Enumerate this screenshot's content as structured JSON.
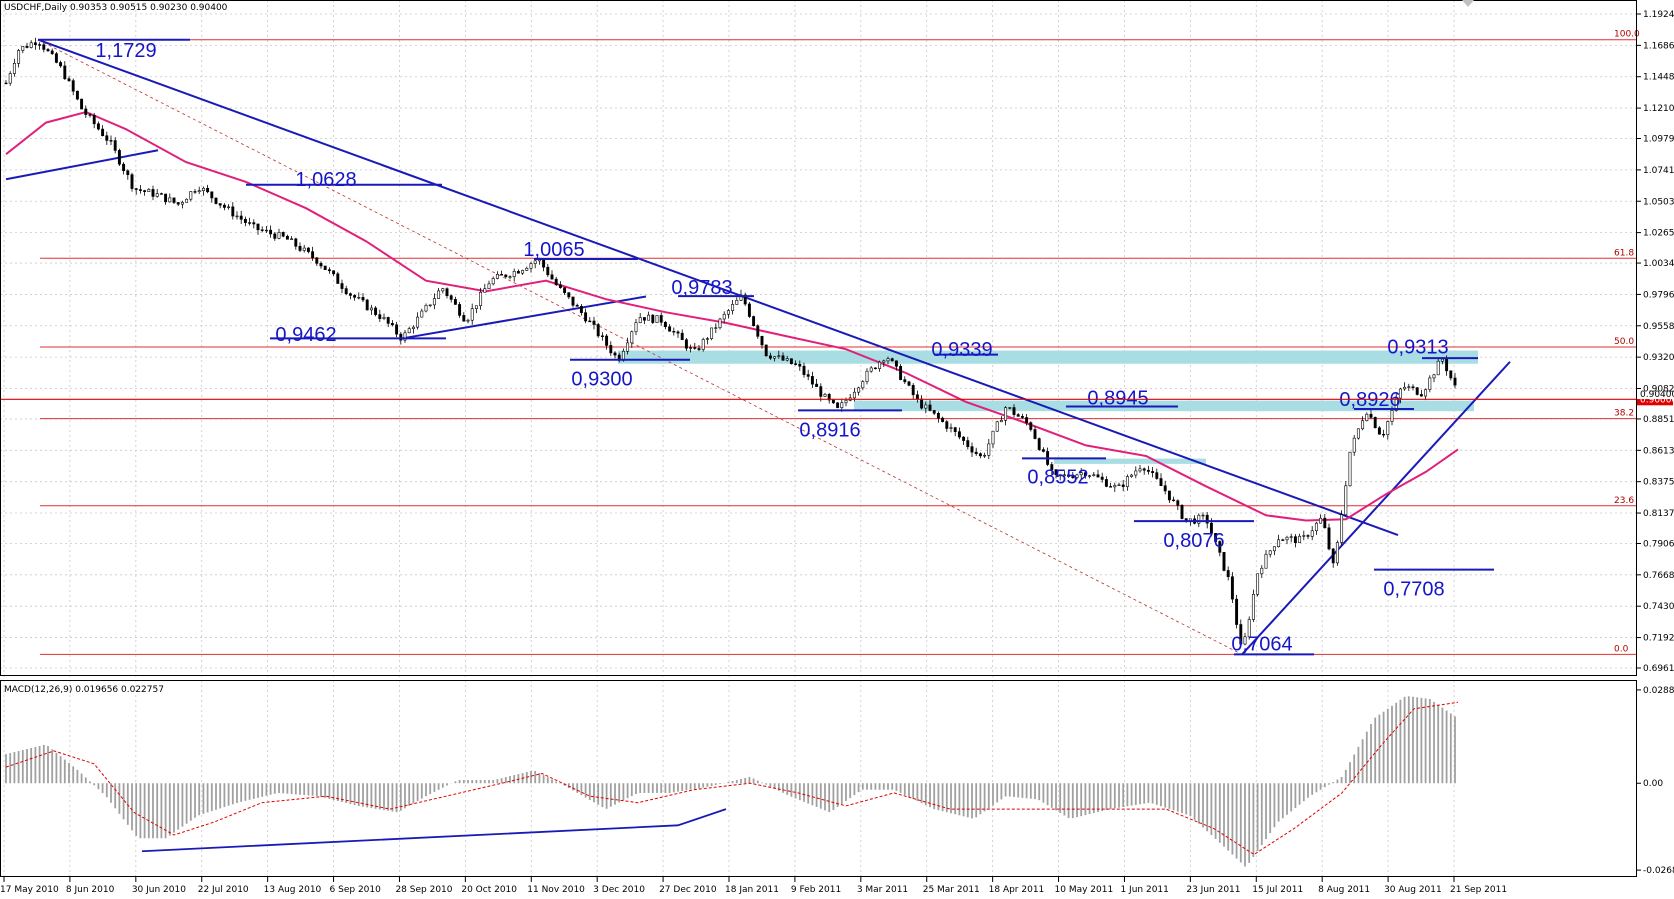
{
  "header": {
    "main_title": "USDCHF,Daily  0.90353 0.90515 0.90230 0.90400",
    "macd_title": "MACD(12,26,9) 0.019656 0.022757"
  },
  "colors": {
    "grid": "#c8c8c8",
    "bull_candle": "#ffffff",
    "bear_candle": "#000000",
    "ma": "#e0207a",
    "trendline": "#1a1ab8",
    "fib": "#e03030",
    "zone": "#a8dde4",
    "current_price": "#e00000",
    "macd_hist": "#a0a0a0",
    "macd_signal": "#e00000"
  },
  "chart_data": {
    "type": "candlestick",
    "symbol": "USDCHF",
    "timeframe": "Daily",
    "ohlc_current": {
      "open": 0.90353,
      "high": 0.90515,
      "low": 0.9023,
      "close": 0.904
    },
    "y_ticks": [
      "1.19240",
      "1.16860",
      "1.14480",
      "1.12100",
      "1.09790",
      "1.07410",
      "1.05030",
      "1.02650",
      "1.00340",
      "0.97960",
      "0.95580",
      "0.93200",
      "0.90820",
      "0.88510",
      "0.86130",
      "0.83750",
      "0.81370",
      "0.79060",
      "0.76680",
      "0.74300",
      "0.71920",
      "0.69610"
    ],
    "x_ticks": [
      "17 May 2010",
      "8 Jun 2010",
      "30 Jun 2010",
      "22 Jul 2010",
      "13 Aug 2010",
      "6 Sep 2010",
      "28 Sep 2010",
      "20 Oct 2010",
      "11 Nov 2010",
      "3 Dec 2010",
      "27 Dec 2010",
      "18 Jan 2011",
      "9 Feb 2011",
      "3 Mar 2011",
      "25 Mar 2011",
      "18 Apr 2011",
      "10 May 2011",
      "1 Jun 2011",
      "23 Jun 2011",
      "15 Jul 2011",
      "8 Aug 2011",
      "30 Aug 2011",
      "21 Sep 2011"
    ],
    "ylim": [
      0.6961,
      1.1924
    ],
    "current_price_label": "0.90000",
    "bid_label": "0.90400",
    "price_path": [
      {
        "d": 0,
        "p": 1.14
      },
      {
        "d": 3,
        "p": 1.165
      },
      {
        "d": 8,
        "p": 1.1729
      },
      {
        "d": 14,
        "p": 1.15
      },
      {
        "d": 19,
        "p": 1.12
      },
      {
        "d": 26,
        "p": 1.095
      },
      {
        "d": 32,
        "p": 1.06
      },
      {
        "d": 38,
        "p": 1.055
      },
      {
        "d": 43,
        "p": 1.048
      },
      {
        "d": 48,
        "p": 1.062
      },
      {
        "d": 55,
        "p": 1.045
      },
      {
        "d": 62,
        "p": 1.03
      },
      {
        "d": 70,
        "p": 1.022
      },
      {
        "d": 78,
        "p": 1.005
      },
      {
        "d": 86,
        "p": 0.98
      },
      {
        "d": 94,
        "p": 0.962
      },
      {
        "d": 99,
        "p": 0.9462
      },
      {
        "d": 104,
        "p": 0.965
      },
      {
        "d": 109,
        "p": 0.985
      },
      {
        "d": 115,
        "p": 0.96
      },
      {
        "d": 121,
        "p": 0.99
      },
      {
        "d": 128,
        "p": 0.998
      },
      {
        "d": 133,
        "p": 1.0065
      },
      {
        "d": 138,
        "p": 0.985
      },
      {
        "d": 145,
        "p": 0.962
      },
      {
        "d": 153,
        "p": 0.93
      },
      {
        "d": 158,
        "p": 0.963
      },
      {
        "d": 164,
        "p": 0.96
      },
      {
        "d": 172,
        "p": 0.935
      },
      {
        "d": 180,
        "p": 0.965
      },
      {
        "d": 184,
        "p": 0.9783
      },
      {
        "d": 190,
        "p": 0.935
      },
      {
        "d": 198,
        "p": 0.925
      },
      {
        "d": 205,
        "p": 0.9
      },
      {
        "d": 208,
        "p": 0.8916
      },
      {
        "d": 214,
        "p": 0.915
      },
      {
        "d": 220,
        "p": 0.9339
      },
      {
        "d": 228,
        "p": 0.898
      },
      {
        "d": 236,
        "p": 0.878
      },
      {
        "d": 244,
        "p": 0.8552
      },
      {
        "d": 250,
        "p": 0.8945
      },
      {
        "d": 256,
        "p": 0.88
      },
      {
        "d": 262,
        "p": 0.84
      },
      {
        "d": 270,
        "p": 0.845
      },
      {
        "d": 278,
        "p": 0.832
      },
      {
        "d": 284,
        "p": 0.851
      },
      {
        "d": 290,
        "p": 0.83
      },
      {
        "d": 295,
        "p": 0.8076
      },
      {
        "d": 300,
        "p": 0.81
      },
      {
        "d": 306,
        "p": 0.76
      },
      {
        "d": 309,
        "p": 0.7064
      },
      {
        "d": 313,
        "p": 0.77
      },
      {
        "d": 318,
        "p": 0.795
      },
      {
        "d": 324,
        "p": 0.793
      },
      {
        "d": 329,
        "p": 0.81
      },
      {
        "d": 332,
        "p": 0.7708
      },
      {
        "d": 336,
        "p": 0.86
      },
      {
        "d": 340,
        "p": 0.8926
      },
      {
        "d": 344,
        "p": 0.872
      },
      {
        "d": 349,
        "p": 0.91
      },
      {
        "d": 354,
        "p": 0.905
      },
      {
        "d": 359,
        "p": 0.9313
      },
      {
        "d": 363,
        "p": 0.904
      }
    ],
    "moving_average": [
      {
        "d": 0,
        "p": 1.086
      },
      {
        "d": 10,
        "p": 1.11
      },
      {
        "d": 20,
        "p": 1.118
      },
      {
        "d": 30,
        "p": 1.105
      },
      {
        "d": 45,
        "p": 1.08
      },
      {
        "d": 60,
        "p": 1.065
      },
      {
        "d": 75,
        "p": 1.045
      },
      {
        "d": 90,
        "p": 1.02
      },
      {
        "d": 105,
        "p": 0.99
      },
      {
        "d": 120,
        "p": 0.982
      },
      {
        "d": 135,
        "p": 0.99
      },
      {
        "d": 150,
        "p": 0.976
      },
      {
        "d": 165,
        "p": 0.966
      },
      {
        "d": 180,
        "p": 0.958
      },
      {
        "d": 195,
        "p": 0.948
      },
      {
        "d": 210,
        "p": 0.938
      },
      {
        "d": 225,
        "p": 0.92
      },
      {
        "d": 240,
        "p": 0.898
      },
      {
        "d": 255,
        "p": 0.882
      },
      {
        "d": 270,
        "p": 0.865
      },
      {
        "d": 285,
        "p": 0.857
      },
      {
        "d": 300,
        "p": 0.834
      },
      {
        "d": 315,
        "p": 0.812
      },
      {
        "d": 325,
        "p": 0.808
      },
      {
        "d": 335,
        "p": 0.809
      },
      {
        "d": 345,
        "p": 0.828
      },
      {
        "d": 355,
        "p": 0.845
      },
      {
        "d": 363,
        "p": 0.862
      }
    ],
    "fibonacci": [
      {
        "label": "100.0",
        "price": 1.1729
      },
      {
        "label": "61.8",
        "price": 1.007
      },
      {
        "label": "50.0",
        "price": 0.9397
      },
      {
        "label": "38.2",
        "price": 0.8853
      },
      {
        "label": "23.6",
        "price": 0.8192
      },
      {
        "label": "0.0",
        "price": 0.7064
      }
    ],
    "zones": [
      {
        "d0": 153,
        "d1": 368,
        "p_top": 0.937,
        "p_bot": 0.927
      },
      {
        "d0": 212,
        "d1": 367,
        "p_top": 0.899,
        "p_bot": 0.891
      },
      {
        "d0": 262,
        "d1": 300,
        "p_top": 0.855,
        "p_bot": 0.851
      }
    ],
    "trendlines": [
      {
        "d0": 0,
        "p0": 1.067,
        "d1": 38,
        "p1": 1.089,
        "style": "solid"
      },
      {
        "d0": 8,
        "p0": 1.1729,
        "d1": 348,
        "p1": 0.797,
        "style": "solid"
      },
      {
        "d0": 8,
        "p0": 1.1729,
        "d1": 309,
        "p1": 0.7064,
        "style": "dashed"
      },
      {
        "d0": 99,
        "p0": 0.9462,
        "d1": 160,
        "p1": 0.978,
        "style": "solid"
      },
      {
        "d0": 309,
        "p0": 0.7064,
        "d1": 376,
        "p1": 0.9285,
        "style": "solid"
      }
    ],
    "annotations": [
      {
        "text": "1,1729",
        "d": 30,
        "p": 1.166,
        "line_d0": 8,
        "line_d1": 46,
        "line_p": 1.1729
      },
      {
        "text": "1,0628",
        "d": 80,
        "p": 1.068,
        "line_d0": 60,
        "line_d1": 109,
        "line_p": 1.0628
      },
      {
        "text": "0,9462",
        "d": 75,
        "p": 0.9505,
        "line_d0": 66,
        "line_d1": 110,
        "line_p": 0.9462
      },
      {
        "text": "1,0065",
        "d": 137,
        "p": 1.015,
        "line_d0": 132,
        "line_d1": 158,
        "line_p": 1.0065
      },
      {
        "text": "0,9783",
        "d": 174,
        "p": 0.986,
        "line_d0": 168,
        "line_d1": 187,
        "line_p": 0.9783
      },
      {
        "text": "0,9300",
        "d": 149,
        "p": 0.9165,
        "line_d0": 141,
        "line_d1": 171,
        "line_p": 0.93
      },
      {
        "text": "0,9339",
        "d": 239,
        "p": 0.939,
        "line_d0": 232,
        "line_d1": 248,
        "line_p": 0.9339
      },
      {
        "text": "0,8916",
        "d": 206,
        "p": 0.878,
        "line_d0": 198,
        "line_d1": 224,
        "line_p": 0.8916
      },
      {
        "text": "0,8945",
        "d": 278,
        "p": 0.902,
        "line_d0": 265,
        "line_d1": 293,
        "line_p": 0.8945
      },
      {
        "text": "0,8552",
        "d": 263,
        "p": 0.842,
        "line_d0": 254,
        "line_d1": 275,
        "line_p": 0.8552
      },
      {
        "text": "0,8076",
        "d": 297,
        "p": 0.794,
        "line_d0": 282,
        "line_d1": 312,
        "line_p": 0.8076
      },
      {
        "text": "0,7064",
        "d": 314,
        "p": 0.7155,
        "line_d0": 307,
        "line_d1": 327,
        "line_p": 0.7064
      },
      {
        "text": "0,7708",
        "d": 352,
        "p": 0.757,
        "line_d0": 342,
        "line_d1": 372,
        "line_p": 0.7708
      },
      {
        "text": "0,8926",
        "d": 341,
        "p": 0.901,
        "line_d0": 337,
        "line_d1": 352,
        "line_p": 0.8926
      },
      {
        "text": "0,9313",
        "d": 353,
        "p": 0.941,
        "line_d0": 354,
        "line_d1": 368,
        "line_p": 0.9313
      }
    ],
    "macd": {
      "ylim": [
        -0.0268,
        0.0288
      ],
      "y_ticks": [
        "0.02883",
        "0.00",
        "-0.02684"
      ],
      "histogram_path": [
        {
          "d": 0,
          "v": 0.009
        },
        {
          "d": 10,
          "v": 0.012
        },
        {
          "d": 18,
          "v": 0.004
        },
        {
          "d": 25,
          "v": -0.004
        },
        {
          "d": 33,
          "v": -0.017
        },
        {
          "d": 40,
          "v": -0.017
        },
        {
          "d": 48,
          "v": -0.01
        },
        {
          "d": 58,
          "v": -0.006
        },
        {
          "d": 68,
          "v": -0.003
        },
        {
          "d": 78,
          "v": -0.004
        },
        {
          "d": 88,
          "v": -0.007
        },
        {
          "d": 98,
          "v": -0.009
        },
        {
          "d": 105,
          "v": -0.004
        },
        {
          "d": 113,
          "v": 0.001
        },
        {
          "d": 122,
          "v": 0.001
        },
        {
          "d": 132,
          "v": 0.004
        },
        {
          "d": 140,
          "v": -0.001
        },
        {
          "d": 150,
          "v": -0.008
        },
        {
          "d": 158,
          "v": -0.003
        },
        {
          "d": 166,
          "v": -0.003
        },
        {
          "d": 176,
          "v": -0.001
        },
        {
          "d": 186,
          "v": 0.002
        },
        {
          "d": 196,
          "v": -0.004
        },
        {
          "d": 206,
          "v": -0.009
        },
        {
          "d": 214,
          "v": -0.002
        },
        {
          "d": 222,
          "v": -0.002
        },
        {
          "d": 232,
          "v": -0.008
        },
        {
          "d": 242,
          "v": -0.011
        },
        {
          "d": 250,
          "v": -0.004
        },
        {
          "d": 258,
          "v": -0.005
        },
        {
          "d": 266,
          "v": -0.011
        },
        {
          "d": 276,
          "v": -0.008
        },
        {
          "d": 286,
          "v": -0.006
        },
        {
          "d": 296,
          "v": -0.01
        },
        {
          "d": 304,
          "v": -0.019
        },
        {
          "d": 310,
          "v": -0.026
        },
        {
          "d": 318,
          "v": -0.012
        },
        {
          "d": 326,
          "v": -0.004
        },
        {
          "d": 334,
          "v": 0.002
        },
        {
          "d": 342,
          "v": 0.02
        },
        {
          "d": 350,
          "v": 0.027
        },
        {
          "d": 356,
          "v": 0.026
        },
        {
          "d": 363,
          "v": 0.02
        }
      ],
      "signal_path": [
        {
          "d": 0,
          "v": 0.005
        },
        {
          "d": 12,
          "v": 0.01
        },
        {
          "d": 22,
          "v": 0.006
        },
        {
          "d": 32,
          "v": -0.009
        },
        {
          "d": 42,
          "v": -0.016
        },
        {
          "d": 52,
          "v": -0.012
        },
        {
          "d": 64,
          "v": -0.006
        },
        {
          "d": 80,
          "v": -0.004
        },
        {
          "d": 96,
          "v": -0.008
        },
        {
          "d": 110,
          "v": -0.004
        },
        {
          "d": 124,
          "v": 0.0
        },
        {
          "d": 134,
          "v": 0.003
        },
        {
          "d": 146,
          "v": -0.004
        },
        {
          "d": 158,
          "v": -0.006
        },
        {
          "d": 172,
          "v": -0.002
        },
        {
          "d": 186,
          "v": 0.0
        },
        {
          "d": 198,
          "v": -0.003
        },
        {
          "d": 210,
          "v": -0.007
        },
        {
          "d": 222,
          "v": -0.003
        },
        {
          "d": 236,
          "v": -0.008
        },
        {
          "d": 250,
          "v": -0.008
        },
        {
          "d": 262,
          "v": -0.008
        },
        {
          "d": 276,
          "v": -0.008
        },
        {
          "d": 290,
          "v": -0.008
        },
        {
          "d": 302,
          "v": -0.014
        },
        {
          "d": 312,
          "v": -0.022
        },
        {
          "d": 322,
          "v": -0.014
        },
        {
          "d": 334,
          "v": -0.003
        },
        {
          "d": 344,
          "v": 0.012
        },
        {
          "d": 352,
          "v": 0.023
        },
        {
          "d": 363,
          "v": 0.025
        }
      ],
      "trendline": {
        "d0": 34,
        "v0": -0.021,
        "d1": 168,
        "v1": -0.013,
        "d2": 180,
        "v2": -0.008
      }
    }
  }
}
